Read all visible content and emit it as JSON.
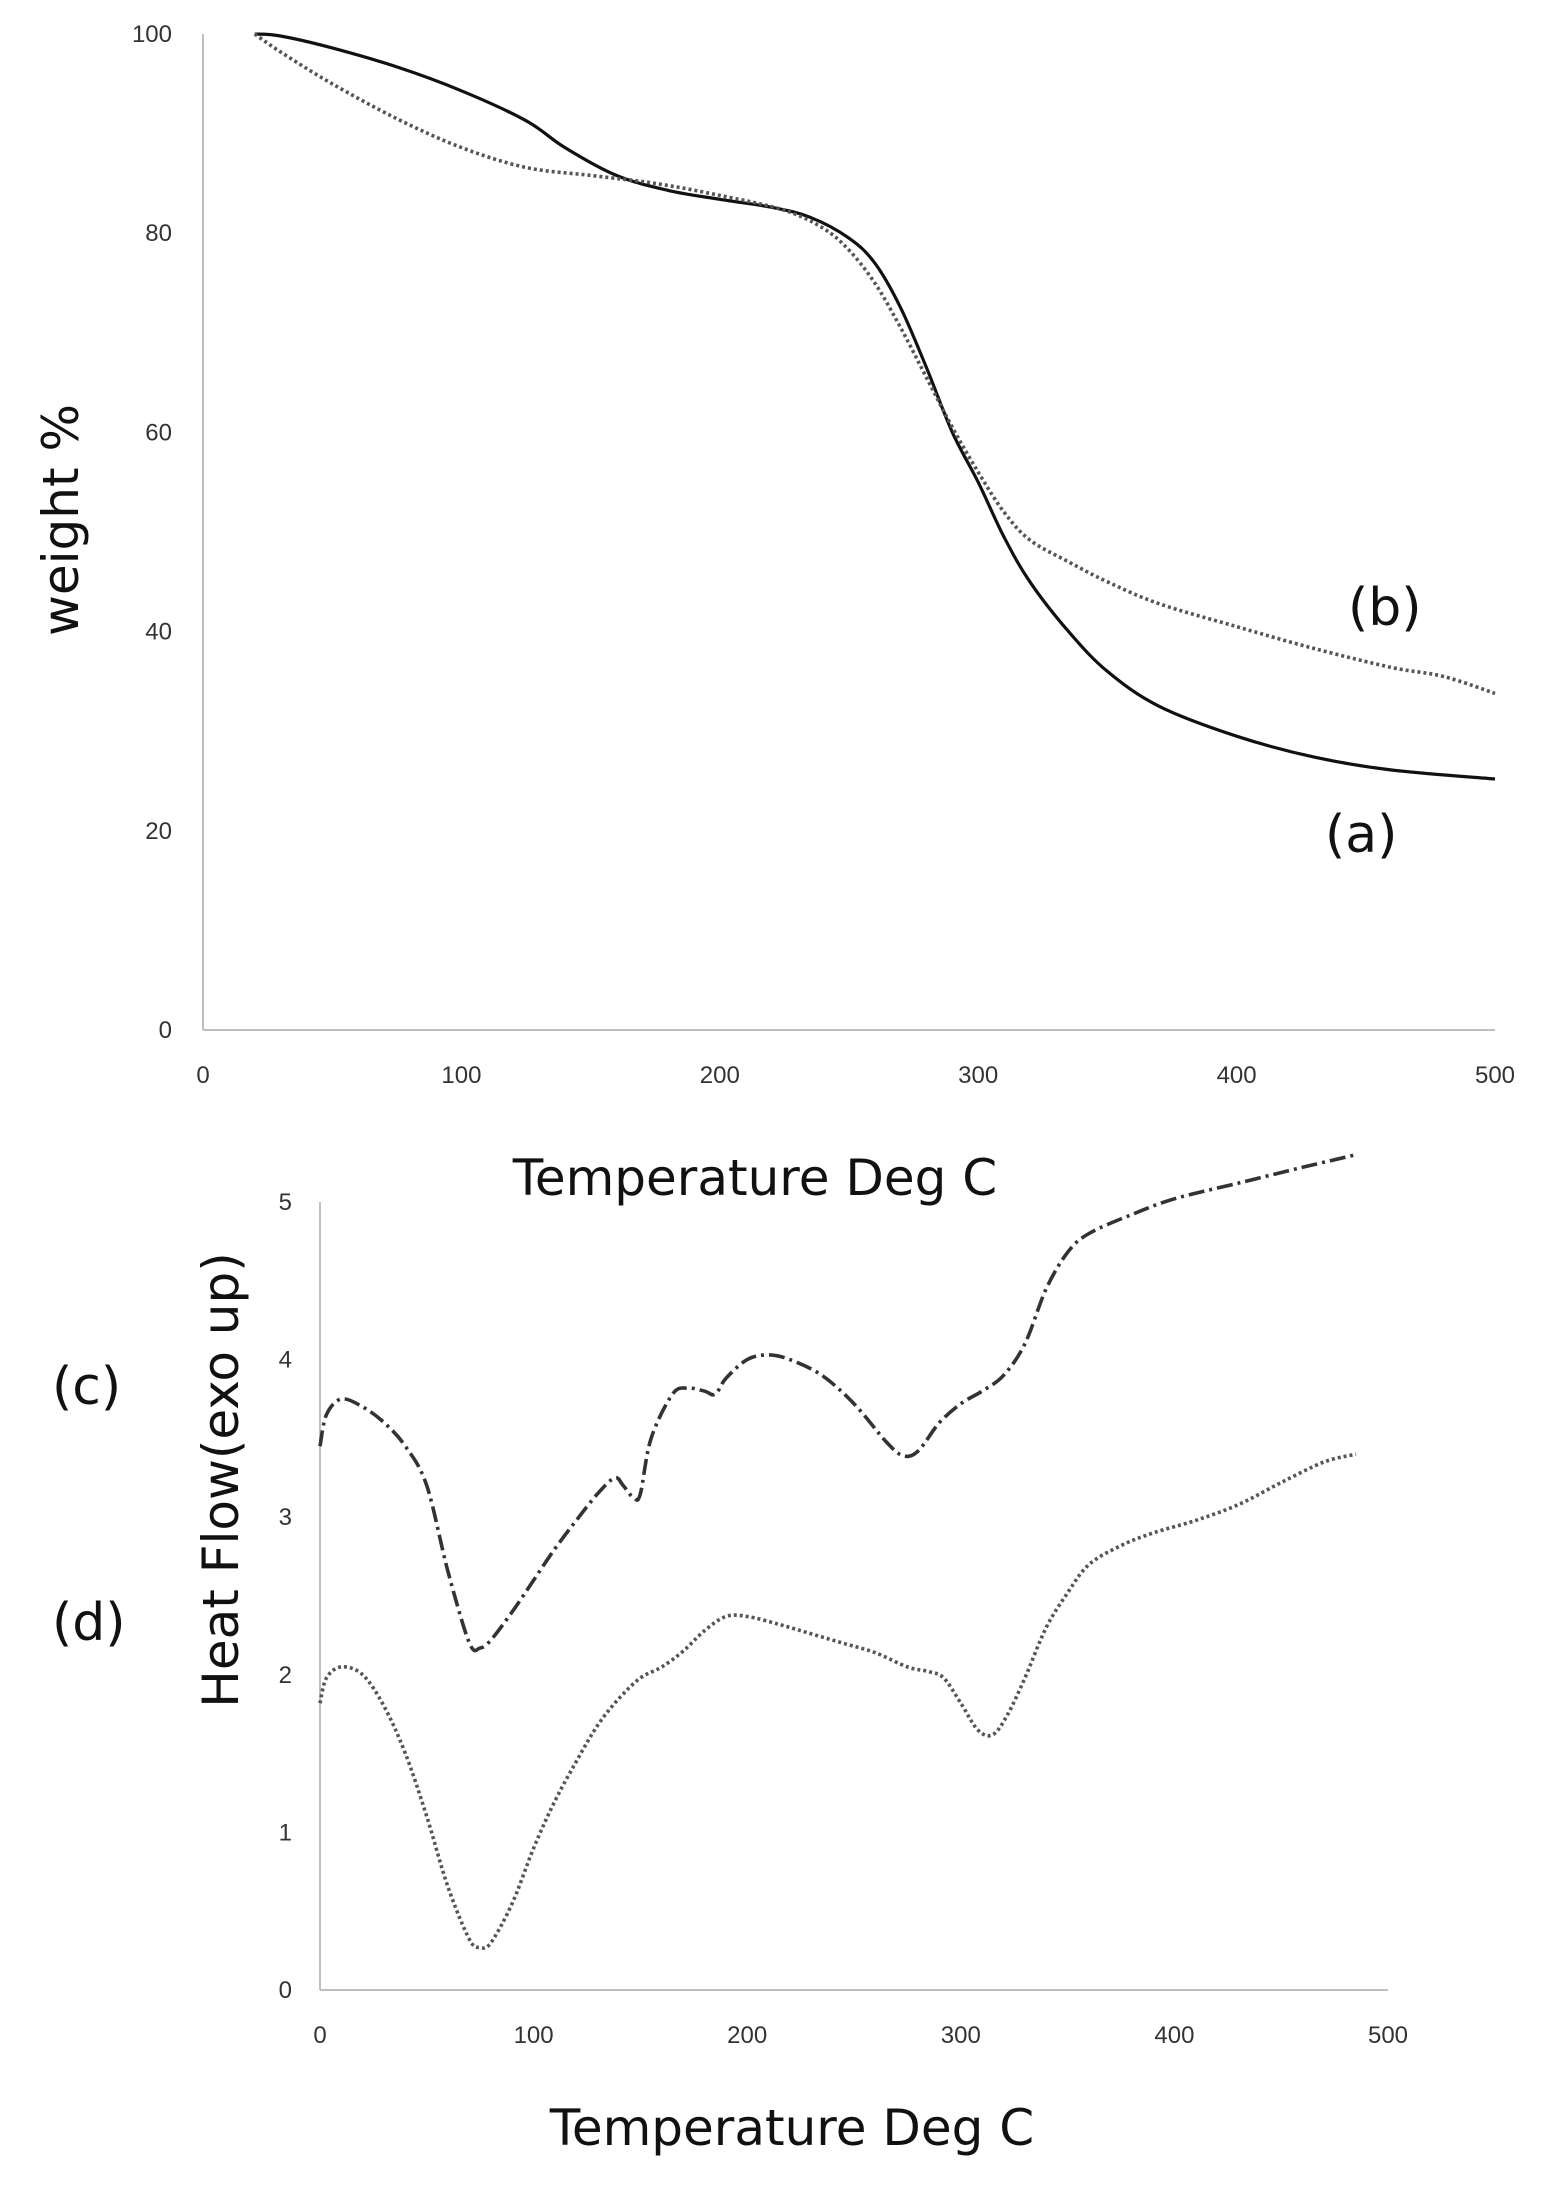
{
  "chart_data": [
    {
      "type": "line",
      "panel": "TGA",
      "xlabel": "Temperature Deg C",
      "ylabel": "weight %",
      "xlim": [
        0,
        500
      ],
      "ylim": [
        0,
        100
      ],
      "xticks": [
        0,
        100,
        200,
        300,
        400,
        500
      ],
      "yticks": [
        0,
        20,
        40,
        60,
        80,
        100
      ],
      "grid": false,
      "series": [
        {
          "name": "(a)",
          "style": "solid",
          "color": "#111111",
          "points": [
            [
              20,
              100
            ],
            [
              30,
              99.8
            ],
            [
              50,
              98.6
            ],
            [
              75,
              96.7
            ],
            [
              100,
              94.3
            ],
            [
              125,
              91.3
            ],
            [
              140,
              88.6
            ],
            [
              160,
              85.8
            ],
            [
              180,
              84.3
            ],
            [
              200,
              83.4
            ],
            [
              220,
              82.6
            ],
            [
              235,
              81.6
            ],
            [
              250,
              79.5
            ],
            [
              260,
              77.0
            ],
            [
              270,
              72.5
            ],
            [
              280,
              66.5
            ],
            [
              290,
              60.0
            ],
            [
              300,
              55.0
            ],
            [
              310,
              49.5
            ],
            [
              320,
              45.0
            ],
            [
              335,
              40.0
            ],
            [
              350,
              36.0
            ],
            [
              370,
              32.5
            ],
            [
              400,
              29.5
            ],
            [
              430,
              27.4
            ],
            [
              460,
              26.1
            ],
            [
              500,
              25.2
            ]
          ]
        },
        {
          "name": "(b)",
          "style": "dotted",
          "color": "#555555",
          "points": [
            [
              20,
              100
            ],
            [
              30,
              98.2
            ],
            [
              50,
              95.0
            ],
            [
              75,
              91.5
            ],
            [
              100,
              88.6
            ],
            [
              125,
              86.6
            ],
            [
              150,
              85.8
            ],
            [
              175,
              85.0
            ],
            [
              200,
              83.8
            ],
            [
              225,
              82.3
            ],
            [
              240,
              80.5
            ],
            [
              250,
              78.3
            ],
            [
              260,
              75.0
            ],
            [
              270,
              70.5
            ],
            [
              280,
              65.5
            ],
            [
              290,
              60.5
            ],
            [
              300,
              56.0
            ],
            [
              310,
              52.0
            ],
            [
              320,
              49.2
            ],
            [
              335,
              47.0
            ],
            [
              350,
              45.0
            ],
            [
              370,
              42.8
            ],
            [
              400,
              40.5
            ],
            [
              430,
              38.3
            ],
            [
              460,
              36.4
            ],
            [
              480,
              35.5
            ],
            [
              500,
              33.8
            ]
          ]
        }
      ],
      "annotations": [
        "(b)",
        "(a)"
      ]
    },
    {
      "type": "line",
      "panel": "DSC",
      "xlabel": "Temperature Deg C",
      "ylabel": "Heat Flow(exo up)",
      "xlim": [
        0,
        500
      ],
      "ylim": [
        0,
        5
      ],
      "xticks": [
        0,
        100,
        200,
        300,
        400,
        500
      ],
      "yticks": [
        0,
        1,
        2,
        3,
        4,
        5
      ],
      "grid": false,
      "series": [
        {
          "name": "(c)",
          "style": "dash-dot",
          "color": "#333333",
          "points": [
            [
              0,
              3.45
            ],
            [
              3,
              3.65
            ],
            [
              10,
              3.75
            ],
            [
              20,
              3.7
            ],
            [
              30,
              3.6
            ],
            [
              40,
              3.45
            ],
            [
              50,
              3.2
            ],
            [
              60,
              2.65
            ],
            [
              70,
              2.2
            ],
            [
              75,
              2.17
            ],
            [
              80,
              2.22
            ],
            [
              90,
              2.4
            ],
            [
              100,
              2.6
            ],
            [
              110,
              2.8
            ],
            [
              120,
              2.98
            ],
            [
              130,
              3.15
            ],
            [
              138,
              3.25
            ],
            [
              142,
              3.2
            ],
            [
              147,
              3.12
            ],
            [
              150,
              3.15
            ],
            [
              155,
              3.5
            ],
            [
              165,
              3.78
            ],
            [
              172,
              3.82
            ],
            [
              180,
              3.8
            ],
            [
              185,
              3.78
            ],
            [
              190,
              3.88
            ],
            [
              200,
              4.0
            ],
            [
              210,
              4.03
            ],
            [
              220,
              4.0
            ],
            [
              235,
              3.9
            ],
            [
              250,
              3.72
            ],
            [
              265,
              3.48
            ],
            [
              273,
              3.39
            ],
            [
              280,
              3.42
            ],
            [
              290,
              3.6
            ],
            [
              300,
              3.72
            ],
            [
              310,
              3.8
            ],
            [
              320,
              3.9
            ],
            [
              330,
              4.1
            ],
            [
              340,
              4.45
            ],
            [
              350,
              4.68
            ],
            [
              360,
              4.8
            ],
            [
              380,
              4.92
            ],
            [
              400,
              5.02
            ],
            [
              430,
              5.12
            ],
            [
              460,
              5.22
            ],
            [
              485,
              5.3
            ]
          ]
        },
        {
          "name": "(d)",
          "style": "dotted",
          "color": "#555555",
          "points": [
            [
              0,
              1.82
            ],
            [
              3,
              1.98
            ],
            [
              10,
              2.05
            ],
            [
              20,
              2.0
            ],
            [
              30,
              1.8
            ],
            [
              40,
              1.5
            ],
            [
              50,
              1.1
            ],
            [
              60,
              0.65
            ],
            [
              70,
              0.32
            ],
            [
              75,
              0.27
            ],
            [
              80,
              0.3
            ],
            [
              90,
              0.55
            ],
            [
              100,
              0.9
            ],
            [
              110,
              1.2
            ],
            [
              120,
              1.45
            ],
            [
              130,
              1.68
            ],
            [
              140,
              1.85
            ],
            [
              150,
              1.98
            ],
            [
              160,
              2.05
            ],
            [
              170,
              2.15
            ],
            [
              180,
              2.28
            ],
            [
              190,
              2.37
            ],
            [
              200,
              2.37
            ],
            [
              215,
              2.32
            ],
            [
              230,
              2.26
            ],
            [
              245,
              2.2
            ],
            [
              260,
              2.14
            ],
            [
              275,
              2.05
            ],
            [
              285,
              2.02
            ],
            [
              292,
              1.98
            ],
            [
              300,
              1.82
            ],
            [
              308,
              1.65
            ],
            [
              315,
              1.62
            ],
            [
              322,
              1.75
            ],
            [
              330,
              1.98
            ],
            [
              340,
              2.3
            ],
            [
              350,
              2.52
            ],
            [
              360,
              2.7
            ],
            [
              375,
              2.82
            ],
            [
              390,
              2.9
            ],
            [
              410,
              2.98
            ],
            [
              430,
              3.08
            ],
            [
              450,
              3.22
            ],
            [
              470,
              3.35
            ],
            [
              485,
              3.4
            ]
          ]
        }
      ],
      "annotations": [
        "(c)",
        "(d)"
      ]
    }
  ]
}
